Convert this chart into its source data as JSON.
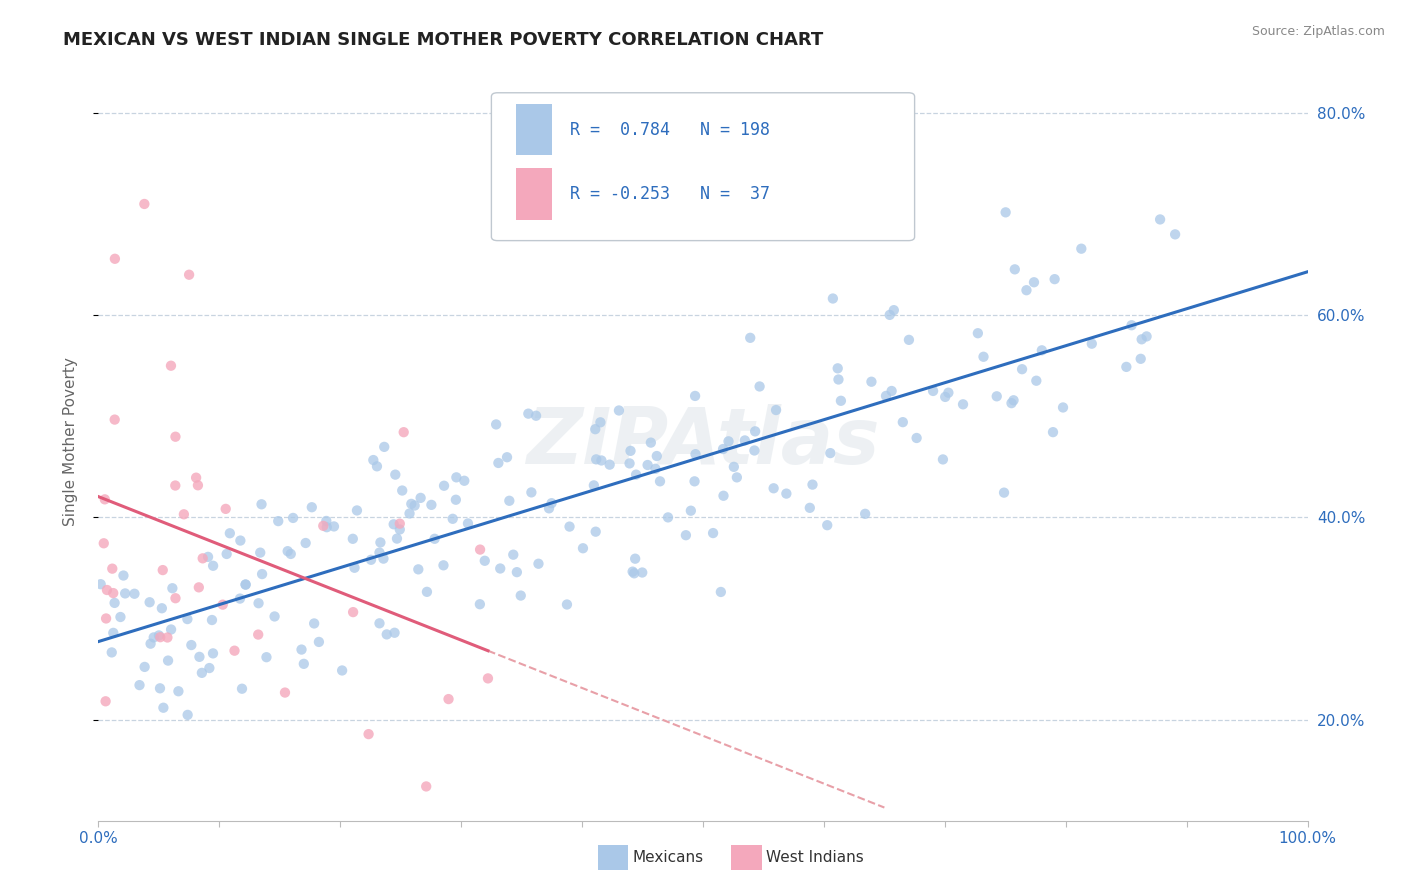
{
  "title": "MEXICAN VS WEST INDIAN SINGLE MOTHER POVERTY CORRELATION CHART",
  "source": "Source: ZipAtlas.com",
  "ylabel": "Single Mother Poverty",
  "watermark": "ZIPAtlas",
  "mexican_R": 0.784,
  "mexican_N": 198,
  "westindian_R": -0.253,
  "westindian_N": 37,
  "xlim": [
    0.0,
    1.0
  ],
  "ylim": [
    0.1,
    0.85
  ],
  "yticks": [
    0.2,
    0.4,
    0.6,
    0.8
  ],
  "ytick_labels": [
    "20.0%",
    "40.0%",
    "60.0%",
    "80.0%"
  ],
  "mexican_color": "#aac8e8",
  "westindian_color": "#f4a8bc",
  "mexican_line_color": "#2e6dbd",
  "westindian_line_color": "#e05c7a",
  "westindian_dashed_color": "#e8a0a8",
  "grid_color": "#c8d4e0",
  "background_color": "#ffffff",
  "title_color": "#222222",
  "axis_label_color": "#666666",
  "legend_text_color": "#333333",
  "watermark_color": "#c5d0da",
  "source_color": "#888888",
  "tick_color": "#2e6dbd",
  "right_ytick_color": "#2e6dbd"
}
